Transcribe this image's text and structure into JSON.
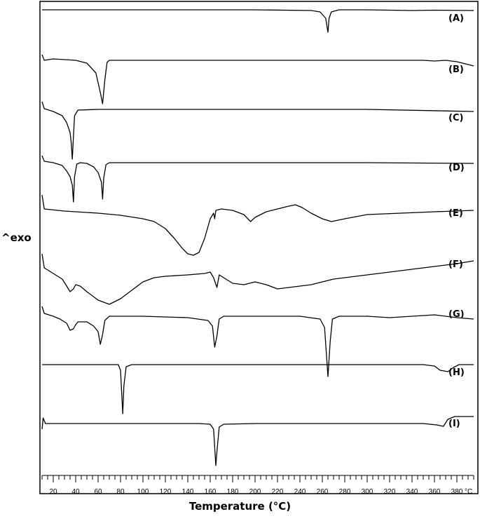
{
  "chart_data": {
    "type": "line",
    "ylabel": "^exo",
    "xlabel": "Temperature (°C)",
    "x_unit": "°C",
    "xlim": [
      10,
      395
    ],
    "x_ticks": [
      20,
      40,
      60,
      80,
      100,
      120,
      140,
      160,
      180,
      200,
      220,
      240,
      260,
      280,
      300,
      320,
      340,
      360,
      380
    ],
    "grid": false,
    "series": [
      {
        "name": "(A)",
        "points": [
          [
            10,
            0
          ],
          [
            100,
            0
          ],
          [
            200,
            0
          ],
          [
            250,
            -1
          ],
          [
            258,
            -3
          ],
          [
            263,
            -12
          ],
          [
            265,
            -32
          ],
          [
            266,
            -12
          ],
          [
            268,
            -3
          ],
          [
            275,
            0
          ],
          [
            300,
            0
          ],
          [
            340,
            -1
          ],
          [
            360,
            -0.5
          ],
          [
            395,
            -1
          ]
        ]
      },
      {
        "name": "(B)",
        "points": [
          [
            10,
            6
          ],
          [
            12,
            -2
          ],
          [
            20,
            0
          ],
          [
            40,
            -2
          ],
          [
            50,
            -6
          ],
          [
            58,
            -20
          ],
          [
            62,
            -48
          ],
          [
            64,
            -64
          ],
          [
            66,
            -30
          ],
          [
            68,
            -5
          ],
          [
            70,
            -2
          ],
          [
            100,
            -2
          ],
          [
            200,
            -2
          ],
          [
            300,
            -2
          ],
          [
            350,
            -2
          ],
          [
            360,
            -3
          ],
          [
            370,
            -2
          ],
          [
            380,
            -4
          ],
          [
            395,
            -10
          ]
        ]
      },
      {
        "name": "(C)",
        "points": [
          [
            10,
            10
          ],
          [
            12,
            0
          ],
          [
            20,
            -4
          ],
          [
            28,
            -10
          ],
          [
            32,
            -20
          ],
          [
            35,
            -34
          ],
          [
            36,
            -48
          ],
          [
            37,
            -72
          ],
          [
            38,
            -40
          ],
          [
            39,
            -10
          ],
          [
            42,
            -2
          ],
          [
            60,
            -1
          ],
          [
            100,
            -1
          ],
          [
            200,
            -1
          ],
          [
            300,
            -1
          ],
          [
            395,
            -4
          ]
        ]
      },
      {
        "name": "(D)",
        "points": [
          [
            10,
            8
          ],
          [
            12,
            0
          ],
          [
            20,
            -2
          ],
          [
            28,
            -6
          ],
          [
            32,
            -14
          ],
          [
            35,
            -22
          ],
          [
            37,
            -34
          ],
          [
            38,
            -58
          ],
          [
            39,
            -22
          ],
          [
            41,
            -4
          ],
          [
            44,
            -2
          ],
          [
            50,
            -3
          ],
          [
            56,
            -8
          ],
          [
            60,
            -16
          ],
          [
            63,
            -30
          ],
          [
            64,
            -54
          ],
          [
            65,
            -24
          ],
          [
            67,
            -5
          ],
          [
            70,
            -2
          ],
          [
            100,
            -2
          ],
          [
            200,
            -2
          ],
          [
            300,
            -2
          ],
          [
            395,
            -3
          ]
        ]
      },
      {
        "name": "(E)",
        "points": [
          [
            10,
            20
          ],
          [
            12,
            0
          ],
          [
            30,
            -3
          ],
          [
            60,
            -6
          ],
          [
            80,
            -9
          ],
          [
            100,
            -14
          ],
          [
            110,
            -18
          ],
          [
            120,
            -28
          ],
          [
            128,
            -42
          ],
          [
            135,
            -56
          ],
          [
            140,
            -64
          ],
          [
            145,
            -66
          ],
          [
            150,
            -62
          ],
          [
            155,
            -42
          ],
          [
            160,
            -14
          ],
          [
            163,
            -6
          ],
          [
            164,
            -14
          ],
          [
            165,
            -2
          ],
          [
            170,
            0
          ],
          [
            180,
            -2
          ],
          [
            190,
            -8
          ],
          [
            196,
            -18
          ],
          [
            200,
            -12
          ],
          [
            210,
            -4
          ],
          [
            220,
            0
          ],
          [
            230,
            4
          ],
          [
            236,
            6
          ],
          [
            242,
            2
          ],
          [
            250,
            -6
          ],
          [
            260,
            -14
          ],
          [
            268,
            -18
          ],
          [
            280,
            -14
          ],
          [
            300,
            -8
          ],
          [
            330,
            -6
          ],
          [
            360,
            -4
          ],
          [
            395,
            -2
          ]
        ]
      },
      {
        "name": "(F)",
        "points": [
          [
            10,
            20
          ],
          [
            12,
            0
          ],
          [
            20,
            -8
          ],
          [
            28,
            -16
          ],
          [
            32,
            -26
          ],
          [
            35,
            -34
          ],
          [
            38,
            -30
          ],
          [
            40,
            -24
          ],
          [
            44,
            -26
          ],
          [
            50,
            -34
          ],
          [
            60,
            -46
          ],
          [
            70,
            -52
          ],
          [
            80,
            -44
          ],
          [
            90,
            -32
          ],
          [
            100,
            -20
          ],
          [
            110,
            -14
          ],
          [
            120,
            -12
          ],
          [
            140,
            -10
          ],
          [
            155,
            -8
          ],
          [
            160,
            -6
          ],
          [
            163,
            -14
          ],
          [
            166,
            -28
          ],
          [
            168,
            -10
          ],
          [
            172,
            -14
          ],
          [
            180,
            -22
          ],
          [
            190,
            -24
          ],
          [
            200,
            -20
          ],
          [
            210,
            -24
          ],
          [
            220,
            -30
          ],
          [
            230,
            -28
          ],
          [
            240,
            -26
          ],
          [
            250,
            -24
          ],
          [
            260,
            -20
          ],
          [
            270,
            -16
          ],
          [
            280,
            -14
          ],
          [
            300,
            -10
          ],
          [
            320,
            -6
          ],
          [
            340,
            -2
          ],
          [
            360,
            2
          ],
          [
            380,
            6
          ],
          [
            395,
            10
          ]
        ]
      },
      {
        "name": "(G)",
        "points": [
          [
            10,
            10
          ],
          [
            12,
            0
          ],
          [
            20,
            -4
          ],
          [
            26,
            -8
          ],
          [
            32,
            -14
          ],
          [
            35,
            -24
          ],
          [
            38,
            -22
          ],
          [
            40,
            -16
          ],
          [
            42,
            -12
          ],
          [
            50,
            -12
          ],
          [
            56,
            -18
          ],
          [
            60,
            -26
          ],
          [
            62,
            -44
          ],
          [
            64,
            -30
          ],
          [
            66,
            -10
          ],
          [
            70,
            -4
          ],
          [
            100,
            -4
          ],
          [
            140,
            -6
          ],
          [
            158,
            -10
          ],
          [
            162,
            -18
          ],
          [
            164,
            -48
          ],
          [
            166,
            -32
          ],
          [
            168,
            -8
          ],
          [
            172,
            -4
          ],
          [
            200,
            -4
          ],
          [
            240,
            -4
          ],
          [
            258,
            -8
          ],
          [
            262,
            -20
          ],
          [
            265,
            -90
          ],
          [
            267,
            -40
          ],
          [
            269,
            -8
          ],
          [
            275,
            -4
          ],
          [
            300,
            -4
          ],
          [
            320,
            -6
          ],
          [
            340,
            -4
          ],
          [
            360,
            -2
          ],
          [
            380,
            -6
          ],
          [
            395,
            -8
          ]
        ]
      },
      {
        "name": "(H)",
        "points": [
          [
            10,
            0
          ],
          [
            40,
            0
          ],
          [
            78,
            0
          ],
          [
            80,
            -8
          ],
          [
            82,
            -70
          ],
          [
            83,
            -30
          ],
          [
            85,
            -3
          ],
          [
            90,
            0
          ],
          [
            200,
            0
          ],
          [
            300,
            0
          ],
          [
            350,
            0
          ],
          [
            360,
            -2
          ],
          [
            365,
            -8
          ],
          [
            372,
            -10
          ],
          [
            377,
            -4
          ],
          [
            382,
            0
          ],
          [
            395,
            0
          ]
        ]
      },
      {
        "name": "(I)",
        "points": [
          [
            10,
            -8
          ],
          [
            11,
            8
          ],
          [
            13,
            0
          ],
          [
            40,
            0
          ],
          [
            100,
            0
          ],
          [
            150,
            0
          ],
          [
            160,
            -1
          ],
          [
            163,
            -8
          ],
          [
            165,
            -60
          ],
          [
            166,
            -40
          ],
          [
            168,
            -5
          ],
          [
            172,
            -1
          ],
          [
            200,
            0
          ],
          [
            300,
            0
          ],
          [
            350,
            0
          ],
          [
            362,
            -2
          ],
          [
            368,
            -4
          ],
          [
            372,
            6
          ],
          [
            378,
            10
          ],
          [
            395,
            10
          ]
        ]
      }
    ]
  }
}
